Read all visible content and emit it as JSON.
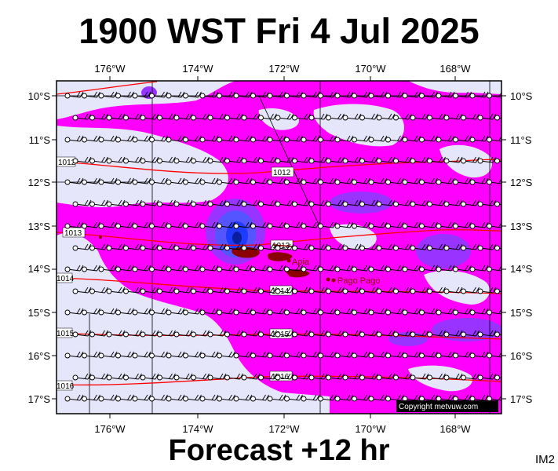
{
  "title": "1900 WST Fri 4 Jul 2025",
  "footer": "Forecast +12 hr",
  "corner_tag": "IM2",
  "copyright": "Copyright metvuw.com",
  "lon_labels": [
    "176°W",
    "174°W",
    "172°W",
    "170°W",
    "168°W"
  ],
  "lat_labels": [
    "10°S",
    "11°S",
    "12°S",
    "13°S",
    "14°S",
    "15°S",
    "16°S",
    "17°S"
  ],
  "isobar_labels": [
    "1012",
    "1012",
    "1013",
    "1013",
    "1014",
    "1014",
    "1015",
    "1015",
    "1016",
    "1016"
  ],
  "places": [
    "Apia",
    "Pago Pago"
  ],
  "colors": {
    "background_rain": "#ff00ff",
    "light_area": "#e6e6fa",
    "heavy_rain_1": "#9933ff",
    "heavy_rain_2": "#5555ff",
    "heavy_rain_3": "#1e3cff",
    "isobar": "#ff0000",
    "land": "#8b0000"
  }
}
